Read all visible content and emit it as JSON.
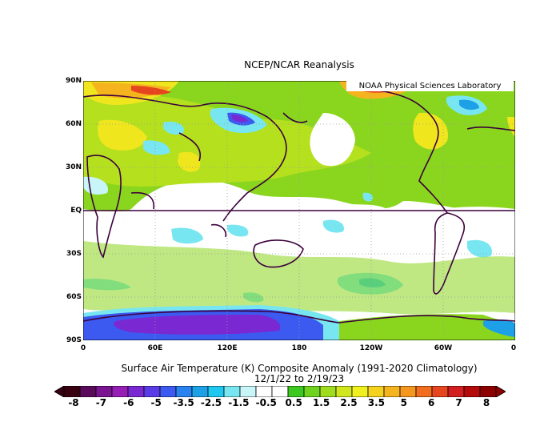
{
  "header": {
    "title": "NCEP/NCAR Reanalysis"
  },
  "badge": "NOAA Physical Sciences Laboratory",
  "map": {
    "lat_labels": [
      "90N",
      "60N",
      "30N",
      "EQ",
      "30S",
      "60S",
      "90S"
    ],
    "lon_labels": [
      "0",
      "60E",
      "120E",
      "180",
      "120W",
      "60W",
      "0"
    ],
    "projection": "cylindrical equidistant, 0-360 longitude",
    "grid": "dotted gray every 30 degrees",
    "equator_line": true
  },
  "caption": {
    "line1": "Surface Air Temperature (K) Composite Anomaly (1991-2020 Climatology)",
    "line2": "12/1/22  to 2/19/23"
  },
  "colorbar": {
    "labels": [
      "-8",
      "-7",
      "-6",
      "-5",
      "-3.5",
      "-2.5",
      "-1.5",
      "-0.5",
      "0.5",
      "1.5",
      "2.5",
      "3.5",
      "5",
      "6",
      "7",
      "8"
    ],
    "colors": [
      "#380010",
      "#5a0a5a",
      "#7a1490",
      "#961eb4",
      "#7a28d2",
      "#5a3ce6",
      "#3c5af0",
      "#2882f0",
      "#1ea0e6",
      "#1ec8f0",
      "#78e6f0",
      "#c8f5f8",
      "#ffffff",
      "#ffffff",
      "#3cc81e",
      "#6ed21e",
      "#a0dc1e",
      "#d2e61e",
      "#f0f01e",
      "#f5d21e",
      "#f5b41e",
      "#f5961e",
      "#f06e1e",
      "#e6461e",
      "#d21e1e",
      "#b40a0a",
      "#8c0000"
    ],
    "extend": "both"
  }
}
